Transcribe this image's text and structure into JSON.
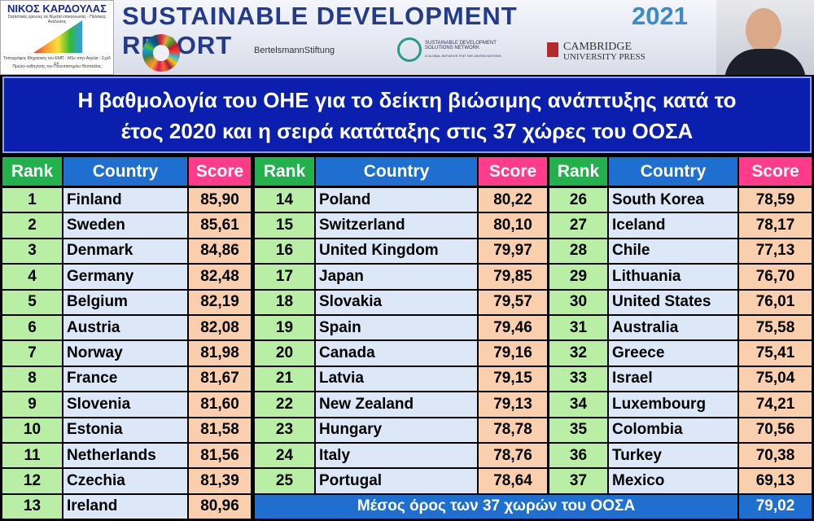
{
  "header": {
    "author": "ΝΙΚΟΣ ΚΑΡΔΟΥΛΑΣ",
    "author_lines": [
      "Στατιστικές έρευνες σε θέματα επικοινωνίας - Πολιτικές Αναλύσεις",
      "Τοπογράφος Μηχανικός του ΕΜΠ - MSc στην Αγγλία - Σχεδ ε.ε.",
      "Πρώην καθηγητής του Πανεπιστημίου Θεσσαλίας"
    ],
    "title": "SUSTAINABLE DEVELOPMENT REPORT",
    "year": "2021",
    "partners": [
      "BertelsmannStiftung",
      "SUSTAINABLE DEVELOPMENT SOLUTIONS NETWORK",
      "A GLOBAL INITIATIVE FOR THE UNITED NATIONS",
      "CAMBRIDGE",
      "UNIVERSITY PRESS"
    ]
  },
  "title_lines": [
    "Η βαθμολογία του ΟΗΕ για το δείκτη βιώσιμης ανάπτυξης κατά το",
    "έτος 2020 και η σειρά κατάταξης στις 37 χώρες του ΟΟΣΑ"
  ],
  "table": {
    "headers": [
      "Rank",
      "Country",
      "Score"
    ],
    "rows": [
      [
        1,
        "Finland",
        "85,90"
      ],
      [
        2,
        "Sweden",
        "85,61"
      ],
      [
        3,
        "Denmark",
        "84,86"
      ],
      [
        4,
        "Germany",
        "82,48"
      ],
      [
        5,
        "Belgium",
        "82,19"
      ],
      [
        6,
        "Austria",
        "82,08"
      ],
      [
        7,
        "Norway",
        "81,98"
      ],
      [
        8,
        "France",
        "81,67"
      ],
      [
        9,
        "Slovenia",
        "81,60"
      ],
      [
        10,
        "Estonia",
        "81,58"
      ],
      [
        11,
        "Netherlands",
        "81,56"
      ],
      [
        12,
        "Czechia",
        "81,39"
      ],
      [
        13,
        "Ireland",
        "80,96"
      ],
      [
        14,
        "Poland",
        "80,22"
      ],
      [
        15,
        "Switzerland",
        "80,10"
      ],
      [
        16,
        "United Kingdom",
        "79,97"
      ],
      [
        17,
        "Japan",
        "79,85"
      ],
      [
        18,
        "Slovakia",
        "79,57"
      ],
      [
        19,
        "Spain",
        "79,46"
      ],
      [
        20,
        "Canada",
        "79,16"
      ],
      [
        21,
        "Latvia",
        "79,15"
      ],
      [
        22,
        "New Zealand",
        "79,13"
      ],
      [
        23,
        "Hungary",
        "78,78"
      ],
      [
        24,
        "Italy",
        "78,76"
      ],
      [
        25,
        "Portugal",
        "78,64"
      ],
      [
        26,
        "South Korea",
        "78,59"
      ],
      [
        27,
        "Iceland",
        "78,17"
      ],
      [
        28,
        "Chile",
        "77,13"
      ],
      [
        29,
        "Lithuania",
        "76,70"
      ],
      [
        30,
        "United States",
        "76,01"
      ],
      [
        31,
        "Australia",
        "75,58"
      ],
      [
        32,
        "Greece",
        "75,41"
      ],
      [
        33,
        "Israel",
        "75,04"
      ],
      [
        34,
        "Luxembourg",
        "74,21"
      ],
      [
        35,
        "Colombia",
        "70,56"
      ],
      [
        36,
        "Turkey",
        "70,38"
      ],
      [
        37,
        "Mexico",
        "69,13"
      ]
    ],
    "average": {
      "label": "Μέσος όρος των 37 χωρών του ΟΟΣΑ",
      "value": "79,02"
    }
  }
}
